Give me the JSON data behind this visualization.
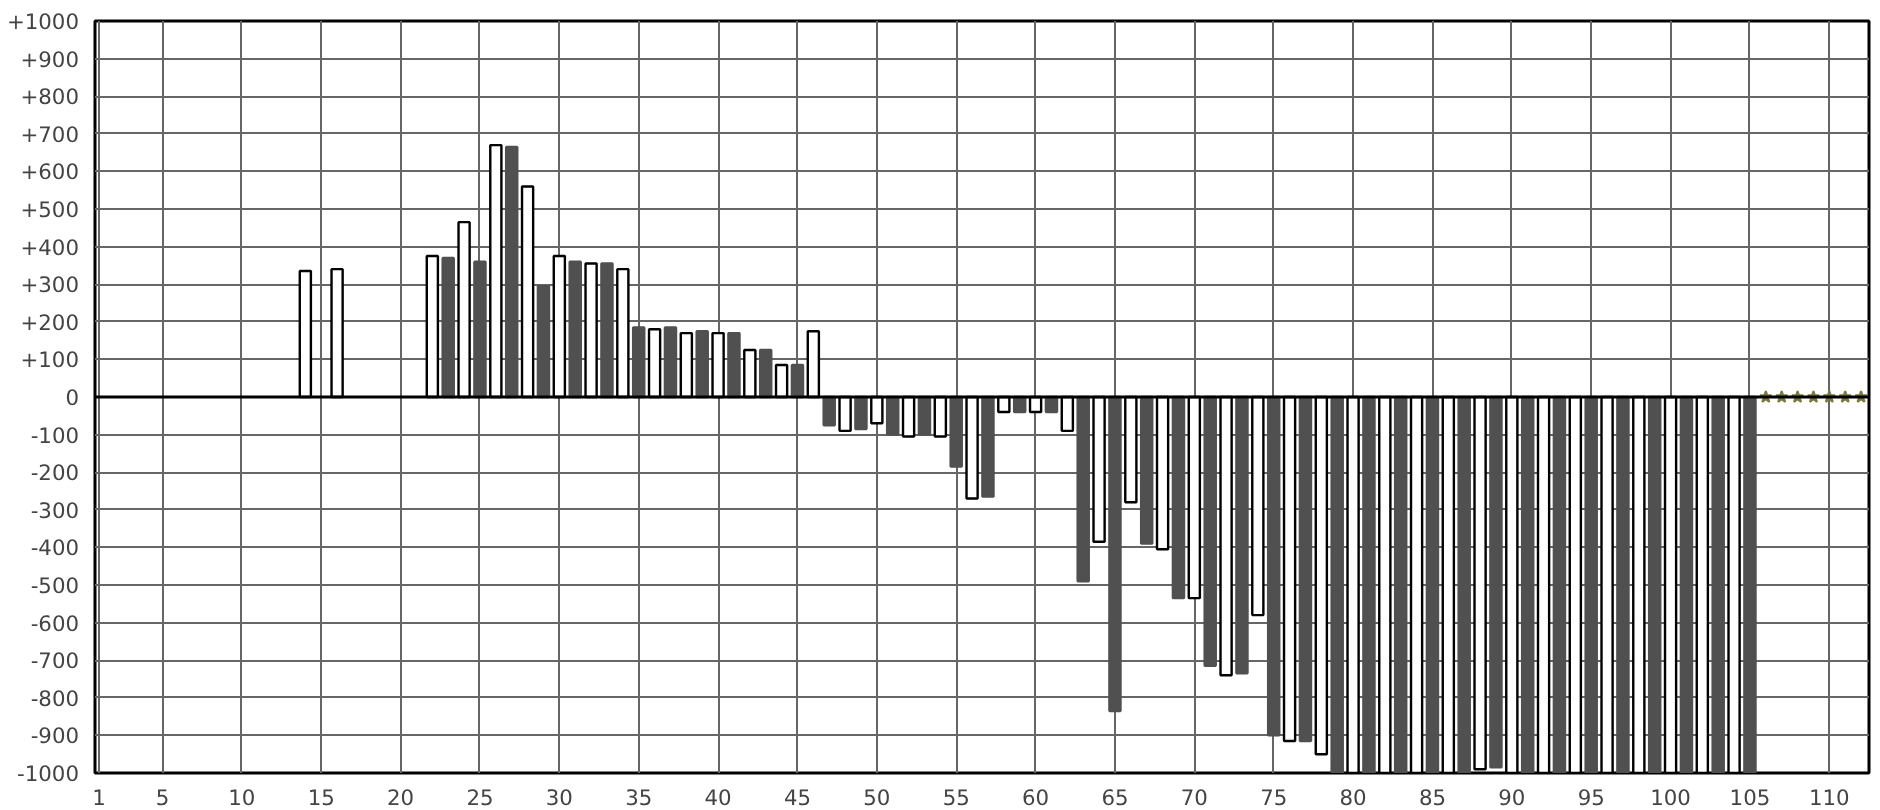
{
  "chart_data": {
    "type": "bar",
    "xlim": [
      0.75,
      112.5
    ],
    "ylim": [
      -1000,
      1000
    ],
    "xticks": [
      1,
      5,
      10,
      15,
      20,
      25,
      30,
      35,
      40,
      45,
      50,
      55,
      60,
      65,
      70,
      75,
      80,
      85,
      90,
      95,
      100,
      105,
      110
    ],
    "yticks": [
      {
        "value": 1000,
        "label": "+1000"
      },
      {
        "value": 900,
        "label": "+900"
      },
      {
        "value": 800,
        "label": "+800"
      },
      {
        "value": 700,
        "label": "+700"
      },
      {
        "value": 600,
        "label": "+600"
      },
      {
        "value": 500,
        "label": "+500"
      },
      {
        "value": 400,
        "label": "+400"
      },
      {
        "value": 300,
        "label": "+300"
      },
      {
        "value": 200,
        "label": "+200"
      },
      {
        "value": 100,
        "label": "+100"
      },
      0,
      -100,
      -200,
      -300,
      -400,
      -500,
      -600,
      -700,
      -800,
      -900,
      -1000
    ],
    "grid": true,
    "ref_lines": [
      {
        "axis": "y",
        "value": 0,
        "color": "#000000"
      }
    ],
    "series": [
      {
        "color": "#ffffff",
        "x": [
          14,
          16,
          22,
          24,
          26,
          28,
          30,
          32,
          34,
          36,
          38,
          40,
          42,
          44,
          46,
          48,
          50,
          52,
          54,
          56,
          58,
          60,
          62,
          64,
          66,
          68,
          70,
          72,
          74,
          76,
          78,
          80,
          82,
          84,
          86,
          88,
          90,
          92,
          94,
          96,
          98,
          100,
          102,
          104
        ],
        "values": [
          335,
          340,
          375,
          465,
          670,
          560,
          375,
          355,
          340,
          180,
          170,
          170,
          125,
          85,
          175,
          -90,
          -70,
          -105,
          -105,
          -270,
          -40,
          -40,
          -90,
          -385,
          -280,
          -405,
          -535,
          -740,
          -580,
          -915,
          -950,
          -1000,
          -1000,
          -1000,
          -1000,
          -990,
          -1000,
          -1000,
          -1000,
          -1000,
          -1000,
          -1000,
          -1000,
          -1000
        ]
      },
      {
        "color": "#505050",
        "x": [
          23,
          25,
          27,
          29,
          31,
          33,
          35,
          37,
          39,
          41,
          43,
          45,
          47,
          49,
          51,
          53,
          55,
          57,
          59,
          61,
          63,
          65,
          67,
          69,
          71,
          73,
          75,
          77,
          79,
          81,
          83,
          85,
          87,
          89,
          91,
          93,
          95,
          97,
          99,
          101,
          103,
          105
        ],
        "values": [
          370,
          360,
          665,
          295,
          360,
          355,
          185,
          185,
          175,
          170,
          125,
          85,
          -75,
          -85,
          -100,
          -100,
          -185,
          -265,
          -40,
          -40,
          -490,
          -835,
          -390,
          -535,
          -715,
          -735,
          -900,
          -915,
          -1000,
          -1000,
          -1000,
          -1000,
          -1000,
          -985,
          -1000,
          -1000,
          -1000,
          -1000,
          -1000,
          -1000,
          -1000,
          -1000
        ]
      },
      {
        "type": "scatter",
        "color": "#7a7a3c",
        "marker": "star",
        "x": [
          106,
          107,
          108,
          109,
          110,
          111,
          112
        ],
        "values": [
          0,
          0,
          0,
          0,
          0,
          0,
          0
        ]
      }
    ]
  }
}
